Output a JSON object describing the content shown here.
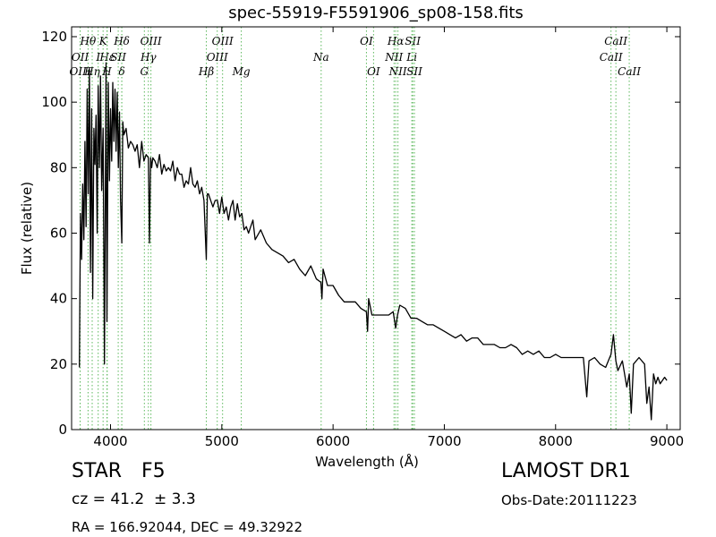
{
  "chart_data": {
    "type": "line",
    "title": "spec-55919-F5591906_sp08-158.fits",
    "xlabel": "Wavelength (Å)",
    "ylabel": "Flux (relative)",
    "xlim": [
      3650,
      9120
    ],
    "ylim": [
      0,
      123
    ],
    "xticks": [
      4000,
      5000,
      6000,
      7000,
      8000,
      9000
    ],
    "yticks": [
      0,
      20,
      40,
      60,
      80,
      100,
      120
    ],
    "grid": false,
    "line_color": "#000000",
    "marker_color": "#5cb85c",
    "series": [
      {
        "x": [
          3720,
          3730,
          3740,
          3750,
          3760,
          3770,
          3780,
          3790,
          3800,
          3810,
          3820,
          3830,
          3840,
          3850,
          3860,
          3870,
          3880,
          3889,
          3900,
          3910,
          3920,
          3933,
          3945,
          3960,
          3968,
          3980,
          3990,
          4000,
          4010,
          4020,
          4030,
          4040,
          4050,
          4060,
          4070,
          4080,
          4090,
          4101,
          4110,
          4120,
          4140,
          4160,
          4180,
          4200,
          4220,
          4240,
          4260,
          4280,
          4300,
          4320,
          4340,
          4350,
          4360,
          4370,
          4380,
          4400,
          4420,
          4440,
          4460,
          4480,
          4500,
          4520,
          4540,
          4560,
          4580,
          4600,
          4620,
          4640,
          4660,
          4680,
          4700,
          4720,
          4740,
          4760,
          4780,
          4800,
          4820,
          4840,
          4861,
          4870,
          4880,
          4900,
          4920,
          4940,
          4960,
          4980,
          5000,
          5020,
          5040,
          5060,
          5080,
          5100,
          5120,
          5140,
          5160,
          5180,
          5200,
          5220,
          5240,
          5260,
          5280,
          5300,
          5350,
          5400,
          5450,
          5500,
          5550,
          5600,
          5650,
          5700,
          5750,
          5800,
          5850,
          5890,
          5900,
          5910,
          5950,
          6000,
          6050,
          6100,
          6150,
          6200,
          6250,
          6300,
          6310,
          6320,
          6350,
          6400,
          6450,
          6500,
          6540,
          6563,
          6580,
          6600,
          6650,
          6700,
          6750,
          6800,
          6850,
          6900,
          6950,
          7000,
          7050,
          7100,
          7150,
          7200,
          7250,
          7300,
          7350,
          7400,
          7450,
          7500,
          7550,
          7600,
          7650,
          7700,
          7750,
          7800,
          7850,
          7900,
          7950,
          8000,
          8050,
          8100,
          8150,
          8200,
          8250,
          8280,
          8300,
          8350,
          8400,
          8450,
          8498,
          8520,
          8542,
          8560,
          8600,
          8640,
          8662,
          8680,
          8700,
          8750,
          8800,
          8820,
          8840,
          8860,
          8880,
          8900,
          8920,
          8940,
          8960,
          8980,
          9000
        ],
        "values": [
          19,
          66,
          52,
          75,
          58,
          88,
          62,
          104,
          72,
          110,
          48,
          98,
          40,
          92,
          81,
          96,
          60,
          105,
          80,
          108,
          73,
          92,
          20,
          112,
          33,
          106,
          76,
          98,
          82,
          106,
          88,
          104,
          85,
          103,
          80,
          97,
          70,
          57,
          94,
          90,
          92,
          86,
          88,
          87,
          85,
          87,
          80,
          88,
          82,
          84,
          83,
          57,
          83,
          80,
          83,
          82,
          80,
          84,
          78,
          81,
          79,
          80,
          79,
          82,
          76,
          80,
          78,
          78,
          74,
          76,
          75,
          80,
          75,
          74,
          76,
          72,
          74,
          70,
          52,
          72,
          72,
          70,
          68,
          70,
          70,
          66,
          71,
          66,
          68,
          64,
          68,
          70,
          64,
          69,
          65,
          66,
          61,
          62,
          60,
          62,
          64,
          58,
          61,
          57,
          55,
          54,
          53,
          51,
          52,
          49,
          47,
          50,
          46,
          45,
          40,
          49,
          44,
          44,
          41,
          39,
          39,
          39,
          37,
          36,
          30,
          40,
          35,
          35,
          35,
          35,
          36,
          31,
          35,
          38,
          37,
          34,
          34,
          33,
          32,
          32,
          31,
          30,
          29,
          28,
          29,
          27,
          28,
          28,
          26,
          26,
          26,
          25,
          25,
          26,
          25,
          23,
          24,
          23,
          24,
          22,
          22,
          23,
          22,
          22,
          22,
          22,
          22,
          10,
          21,
          22,
          20,
          19,
          23,
          29,
          21,
          18,
          21,
          13,
          17,
          5,
          20,
          22,
          20,
          8,
          13,
          3,
          17,
          14,
          16,
          14,
          15,
          16,
          15
        ]
      }
    ],
    "lines": [
      {
        "label": "Hθ",
        "x": 3798,
        "row": 1
      },
      {
        "label": "OII",
        "x": 3727,
        "row": 2
      },
      {
        "label": "OIII",
        "x": 3727,
        "row": 3
      },
      {
        "label": "Hη",
        "x": 3835,
        "row": 3
      },
      {
        "label": "K",
        "x": 3933,
        "row": 1
      },
      {
        "label": "Hε",
        "x": 3970,
        "row": 2
      },
      {
        "label": "H",
        "x": 3968,
        "row": 3
      },
      {
        "label": "I",
        "x": 3889,
        "row": 2
      },
      {
        "label": "SII",
        "x": 4069,
        "row": 2
      },
      {
        "label": "δ",
        "x": 4101,
        "row": 3
      },
      {
        "label": "Hδ",
        "x": 4101,
        "row": 1
      },
      {
        "label": "OIII",
        "x": 4363,
        "row": 1
      },
      {
        "label": "Hγ",
        "x": 4340,
        "row": 2
      },
      {
        "label": "G",
        "x": 4304,
        "row": 3
      },
      {
        "label": "OIII",
        "x": 5007,
        "row": 1
      },
      {
        "label": "OIII",
        "x": 4959,
        "row": 2
      },
      {
        "label": "Hβ",
        "x": 4861,
        "row": 3
      },
      {
        "label": "Mg",
        "x": 5175,
        "row": 3
      },
      {
        "label": "Na",
        "x": 5893,
        "row": 2
      },
      {
        "label": "OI",
        "x": 6300,
        "row": 1
      },
      {
        "label": "OI",
        "x": 6364,
        "row": 3
      },
      {
        "label": "Hα",
        "x": 6563,
        "row": 1
      },
      {
        "label": "SII",
        "x": 6716,
        "row": 1
      },
      {
        "label": "NII",
        "x": 6548,
        "row": 2
      },
      {
        "label": "Li",
        "x": 6708,
        "row": 2
      },
      {
        "label": "NII",
        "x": 6583,
        "row": 3
      },
      {
        "label": "SII",
        "x": 6731,
        "row": 3
      },
      {
        "label": "CaII",
        "x": 8542,
        "row": 1
      },
      {
        "label": "CaII",
        "x": 8498,
        "row": 2
      },
      {
        "label": "CaII",
        "x": 8662,
        "row": 3
      }
    ]
  },
  "footer": {
    "object_class": "STAR",
    "subclass": "F5",
    "survey": "LAMOST DR1",
    "redshift": "cz = 41.2  ± 3.3",
    "obs_date": "Obs-Date:20111223",
    "coords": "RA = 166.92044, DEC = 49.32922"
  }
}
